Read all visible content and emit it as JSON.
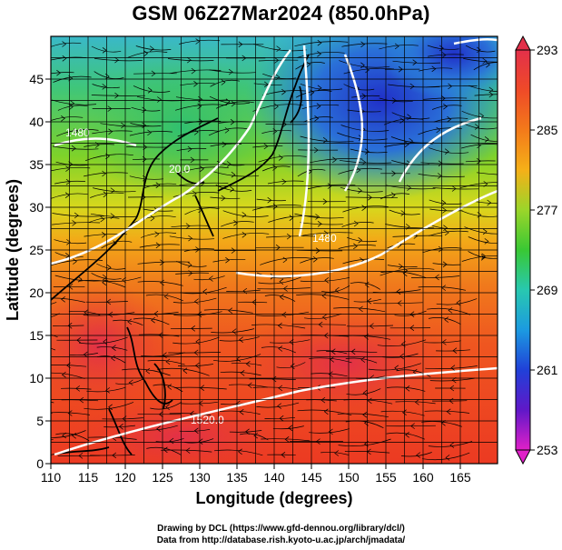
{
  "title": "GSM 06Z27Mar2024 (850.0hPa)",
  "x_axis": {
    "label": "Longitude (degrees)",
    "min": 110,
    "max": 170,
    "ticks": [
      "110",
      "115",
      "120",
      "125",
      "130",
      "135",
      "140",
      "145",
      "150",
      "155",
      "160",
      "165"
    ]
  },
  "y_axis": {
    "label": "Latitude (degrees)",
    "min": 0,
    "max": 50,
    "ticks": [
      "0",
      "5",
      "10",
      "15",
      "20",
      "25",
      "30",
      "35",
      "40",
      "45"
    ]
  },
  "colorbar": {
    "labels": [
      "293",
      "285",
      "277",
      "269",
      "261",
      "253"
    ],
    "colors": [
      "#e3304a",
      "#f05a20",
      "#f59a18",
      "#f2d21a",
      "#9bd52a",
      "#39c834",
      "#28c8a0",
      "#1c9ae0",
      "#2040d8",
      "#3018c8",
      "#8818c8",
      "#e020c8"
    ]
  },
  "contour_labels": [
    "1480",
    "20.0",
    "1480",
    "1520.0"
  ],
  "credits": {
    "line1": "Drawing by DCL (https://www.gfd-dennou.org/library/dcl/)",
    "line2": "Data from http://database.rish.kyoto-u.ac.jp/arch/jmadata/"
  }
}
